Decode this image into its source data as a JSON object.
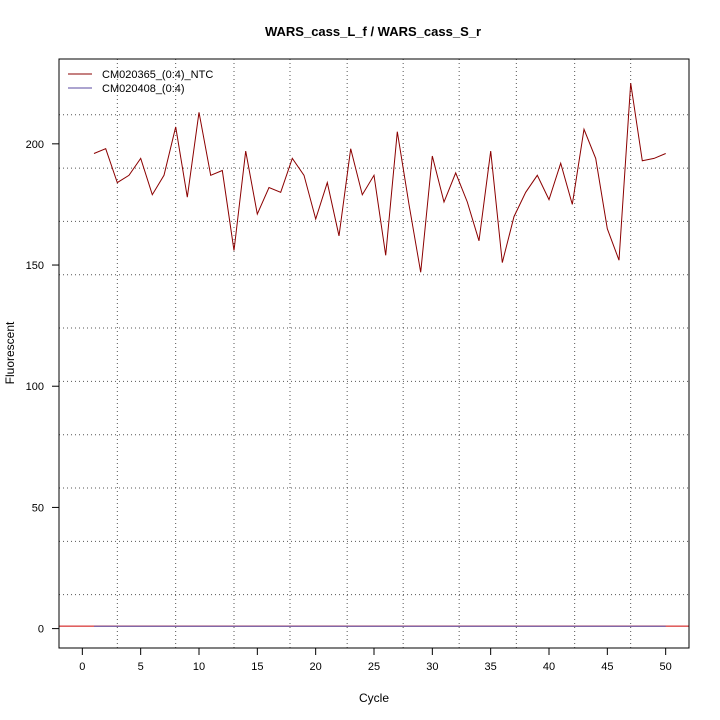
{
  "chart_data": {
    "type": "line",
    "title": "WARS_cass_L_f / WARS_cass_S_r",
    "xlabel": "Cycle",
    "ylabel": "Fluorescent",
    "xlim": [
      -2,
      52
    ],
    "ylim": [
      -8,
      235
    ],
    "x_ticks": [
      0,
      5,
      10,
      15,
      20,
      25,
      30,
      35,
      40,
      45,
      50
    ],
    "y_ticks": [
      0,
      50,
      100,
      150,
      200
    ],
    "x_grid": [
      3,
      8,
      13,
      17.8,
      22.7,
      27.5,
      32.3,
      37.2,
      42.2,
      47
    ],
    "y_grid": [
      14,
      36,
      58,
      80,
      102,
      124,
      146,
      168,
      190,
      212
    ],
    "grid": true,
    "legend_position": "top-left",
    "threshold_color": "#cd0000",
    "series": [
      {
        "name": "CM020365_(0:4)_NTC",
        "color": "#8b0000",
        "x": [
          1,
          2,
          3,
          4,
          5,
          6,
          7,
          8,
          9,
          10,
          11,
          12,
          13,
          14,
          15,
          16,
          17,
          18,
          19,
          20,
          21,
          22,
          23,
          24,
          25,
          26,
          27,
          28,
          29,
          30,
          31,
          32,
          33,
          34,
          35,
          36,
          37,
          38,
          39,
          40,
          41,
          42,
          43,
          44,
          45,
          46,
          47,
          48,
          49,
          50
        ],
        "values": [
          196,
          198,
          184,
          187,
          194,
          179,
          187,
          207,
          178,
          213,
          187,
          189,
          156,
          197,
          171,
          182,
          180,
          194,
          187,
          169,
          184,
          162,
          198,
          179,
          187,
          154,
          205,
          175,
          147,
          195,
          176,
          188,
          176,
          160,
          197,
          151,
          170,
          180,
          187,
          177,
          192,
          175,
          206,
          194,
          165,
          152,
          225,
          193,
          194,
          196
        ]
      },
      {
        "name": "CM020408_(0:4)",
        "color": "#5a4aa0",
        "x": [
          1,
          2,
          3,
          4,
          5,
          6,
          7,
          8,
          9,
          10,
          11,
          12,
          13,
          14,
          15,
          16,
          17,
          18,
          19,
          20,
          21,
          22,
          23,
          24,
          25,
          26,
          27,
          28,
          29,
          30,
          31,
          32,
          33,
          34,
          35,
          36,
          37,
          38,
          39,
          40,
          41,
          42,
          43,
          44,
          45,
          46,
          47,
          48,
          49,
          50
        ],
        "values": [
          1,
          1,
          1,
          1,
          1,
          1,
          1,
          1,
          1,
          1,
          1,
          1,
          1,
          1,
          1,
          1,
          1,
          1,
          1,
          1,
          1,
          1,
          1,
          1,
          1,
          1,
          1,
          1,
          1,
          1,
          1,
          1,
          1,
          1,
          1,
          1,
          1,
          1,
          1,
          1,
          1,
          1,
          1,
          1,
          1,
          1,
          1,
          1,
          1,
          1
        ]
      }
    ]
  }
}
